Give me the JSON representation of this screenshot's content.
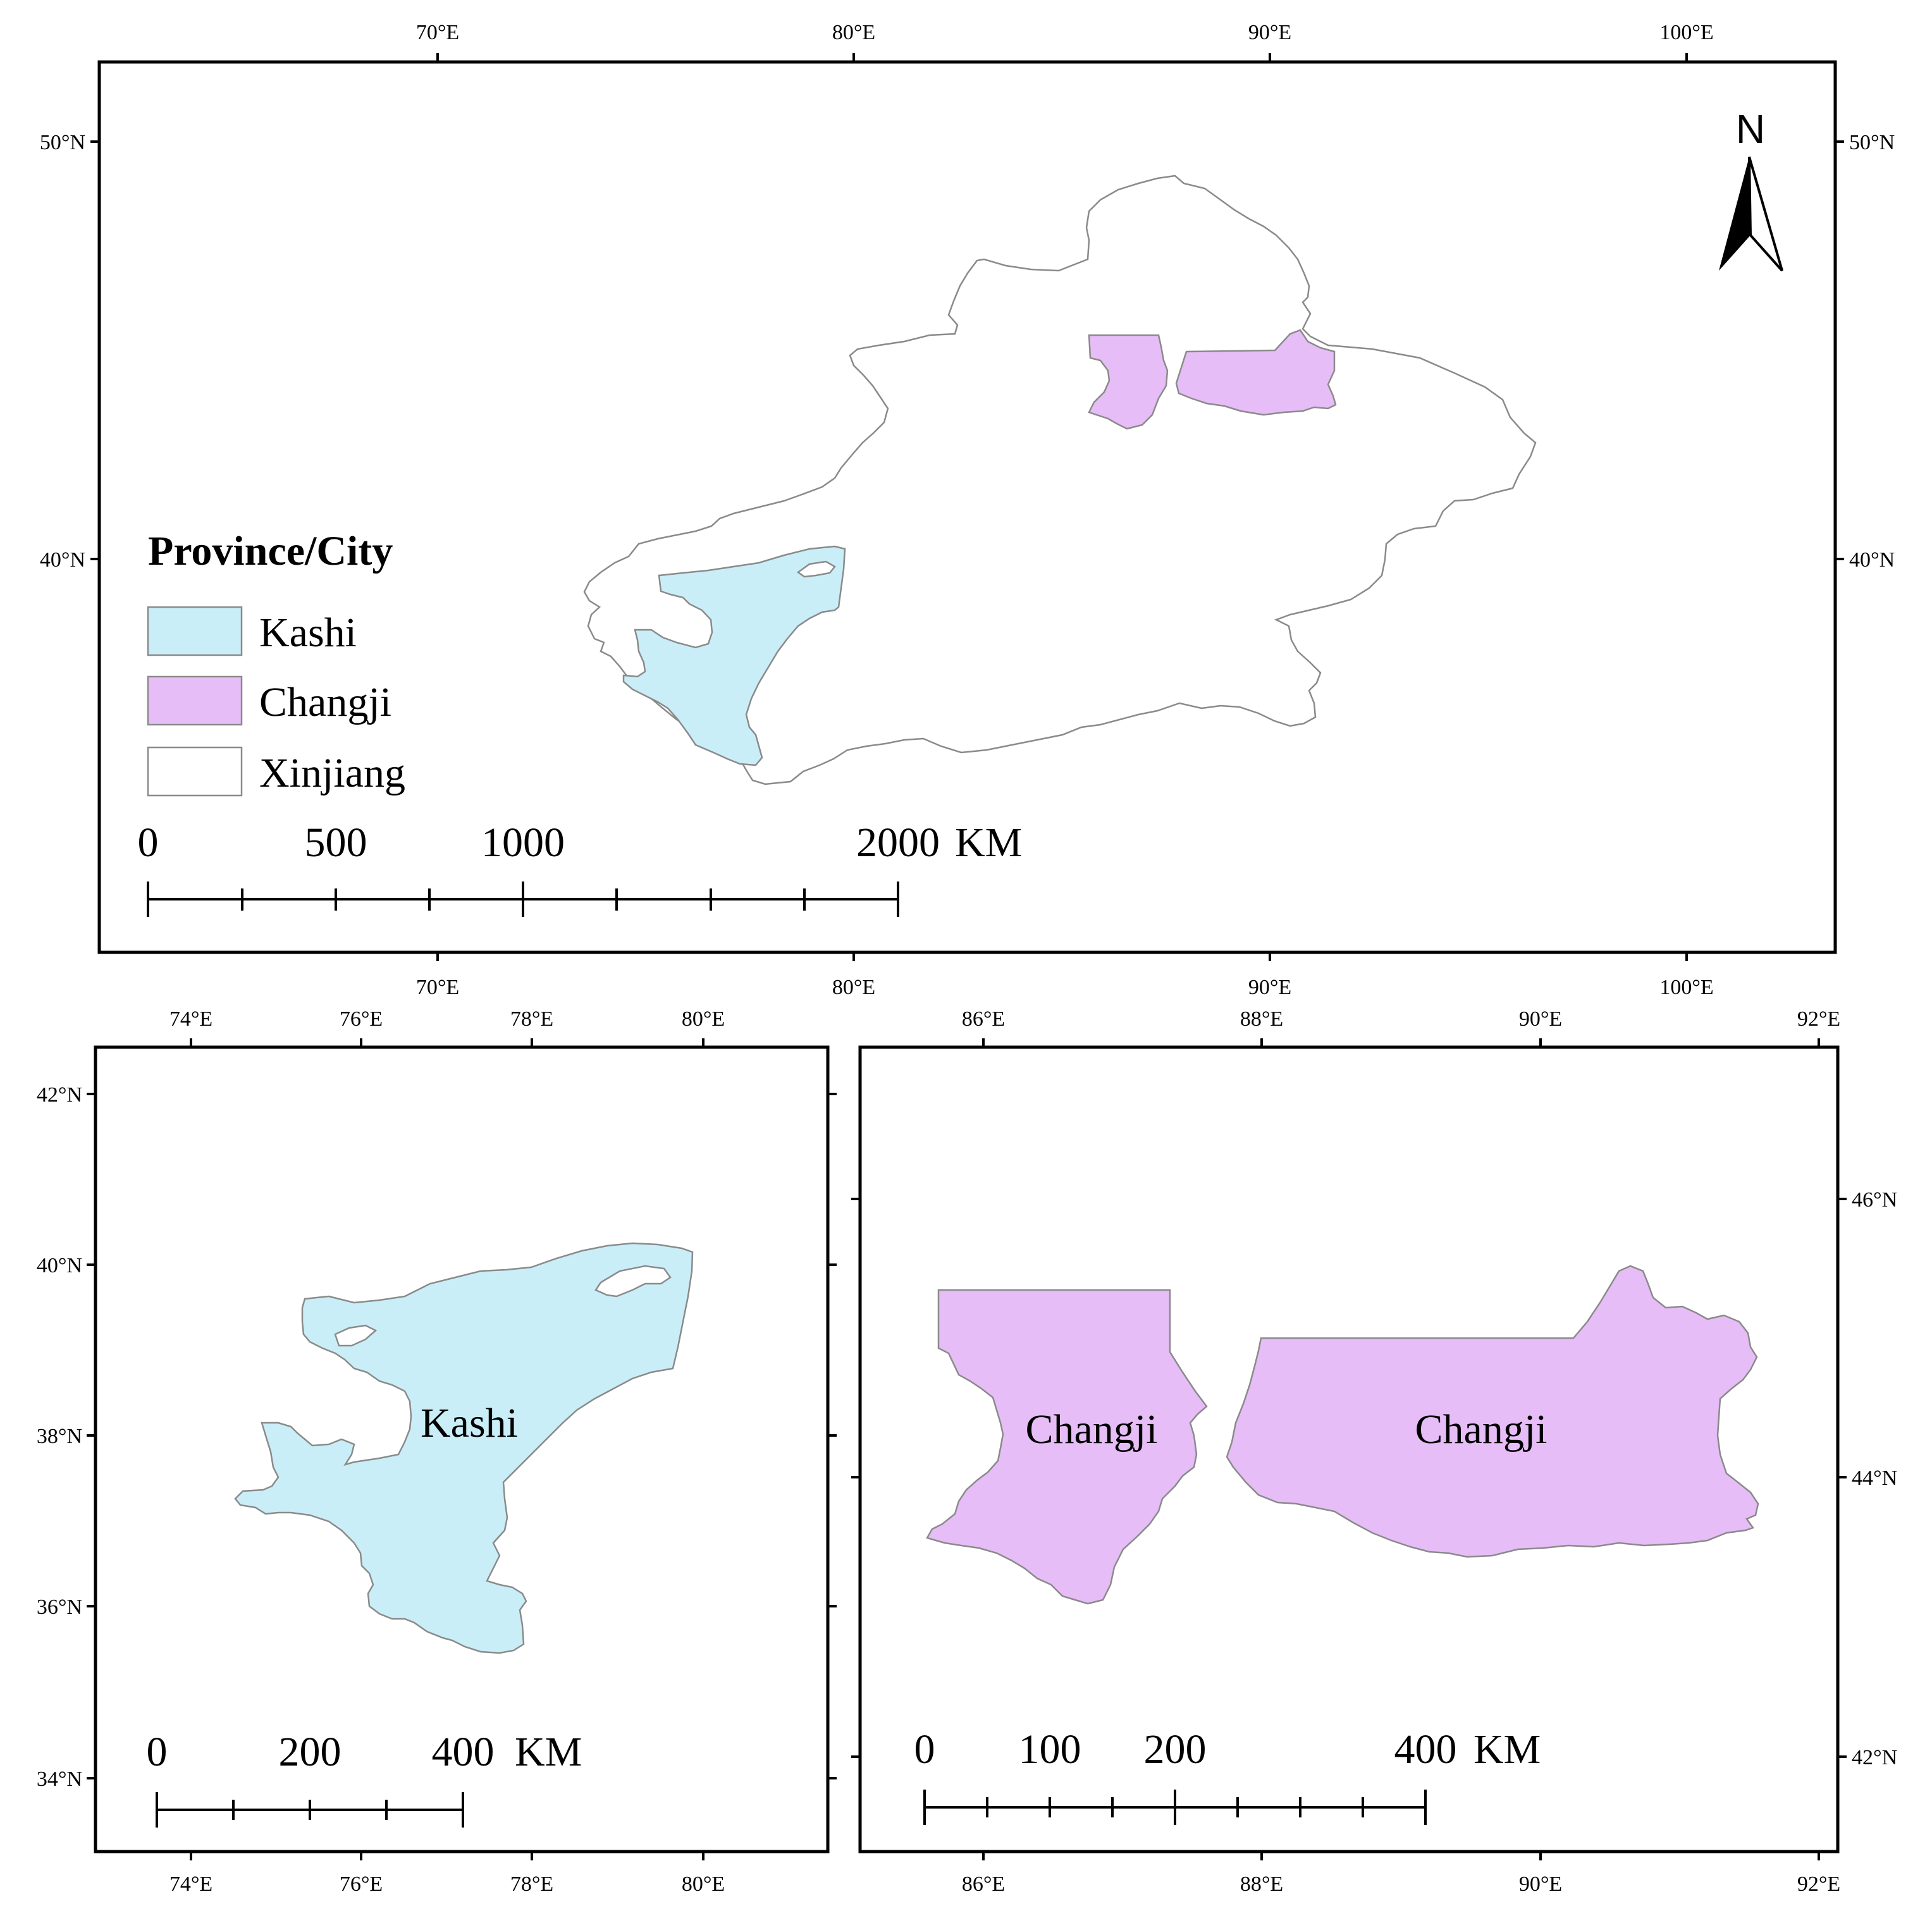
{
  "colors": {
    "kashi": "#c9eef8",
    "changji": "#e6bdf7",
    "xinjiang": "#ffffff",
    "outline": "#8a8a8a",
    "frame": "#000000"
  },
  "main_map": {
    "top_lon_labels": [
      "70°E",
      "80°E",
      "90°E",
      "100°E"
    ],
    "bottom_lon_labels": [
      "70°E",
      "80°E",
      "90°E",
      "100°E"
    ],
    "left_lat_labels": [
      "50°N",
      "40°N"
    ],
    "right_lat_labels": [
      "50°N",
      "40°N"
    ],
    "north_arrow": {
      "label": "N",
      "icon": "north-arrow-icon"
    },
    "legend": {
      "title": "Province/City",
      "items": [
        {
          "label": "Kashi",
          "color": "#c9eef8"
        },
        {
          "label": "Changji",
          "color": "#e6bdf7"
        },
        {
          "label": "Xinjiang",
          "color": "#ffffff"
        }
      ]
    },
    "scale_bar": {
      "labels": [
        "0",
        "500",
        "1000",
        "2000"
      ],
      "unit": "KM"
    }
  },
  "kashi_map": {
    "top_lon_labels": [
      "74°E",
      "76°E",
      "78°E",
      "80°E"
    ],
    "bottom_lon_labels": [
      "74°E",
      "76°E",
      "78°E",
      "80°E"
    ],
    "left_lat_labels": [
      "42°N",
      "40°N",
      "38°N",
      "36°N",
      "34°N"
    ],
    "region_label": "Kashi",
    "scale_bar": {
      "labels": [
        "0",
        "200",
        "400"
      ],
      "unit": "KM"
    }
  },
  "changji_map": {
    "top_lon_labels": [
      "86°E",
      "88°E",
      "90°E",
      "92°E"
    ],
    "bottom_lon_labels": [
      "86°E",
      "88°E",
      "90°E",
      "92°E"
    ],
    "right_lat_labels": [
      "46°N",
      "44°N",
      "42°N"
    ],
    "region_labels": [
      "Changji",
      "Changji"
    ],
    "scale_bar": {
      "labels": [
        "0",
        "100",
        "200",
        "400"
      ],
      "unit": "KM"
    }
  }
}
